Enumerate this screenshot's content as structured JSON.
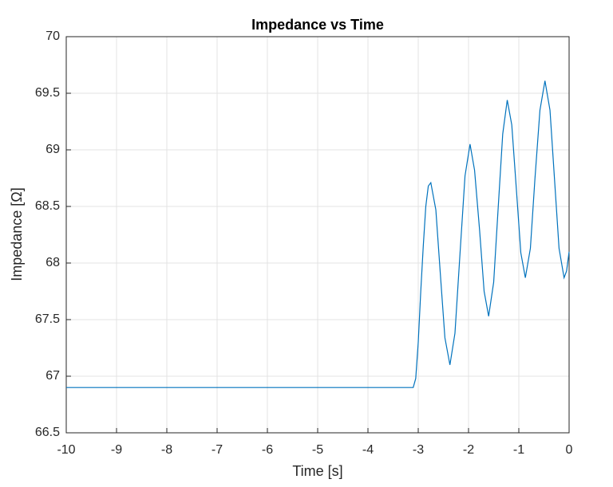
{
  "chart_data": {
    "type": "line",
    "title": "Impedance vs Time",
    "x_label": "Time [s]",
    "y_label": "Impedance [Ω]",
    "x": [
      -10,
      -3.1,
      -3.05,
      -3.0,
      -2.95,
      -2.9,
      -2.85,
      -2.8,
      -2.75,
      -2.65,
      -2.56,
      -2.47,
      -2.37,
      -2.27,
      -2.17,
      -2.07,
      -1.97,
      -1.88,
      -1.78,
      -1.69,
      -1.6,
      -1.5,
      -1.41,
      -1.32,
      -1.23,
      -1.14,
      -1.05,
      -0.96,
      -0.87,
      -0.77,
      -0.68,
      -0.58,
      -0.48,
      -0.38,
      -0.29,
      -0.2,
      -0.1,
      -0.05,
      0
    ],
    "series": [
      {
        "name": "Impedance",
        "color": "#0072bd",
        "values": [
          66.9,
          66.9,
          66.98,
          67.3,
          67.75,
          68.15,
          68.5,
          68.68,
          68.71,
          68.47,
          67.9,
          67.34,
          67.1,
          67.38,
          68.08,
          68.77,
          69.05,
          68.82,
          68.29,
          67.75,
          67.53,
          67.83,
          68.49,
          69.14,
          69.44,
          69.22,
          68.66,
          68.09,
          67.87,
          68.13,
          68.74,
          69.35,
          69.61,
          69.35,
          68.74,
          68.13,
          67.87,
          67.93,
          68.1
        ]
      }
    ],
    "xlim": [
      -10,
      0
    ],
    "xticks": [
      -10,
      -9,
      -8,
      -7,
      -6,
      -5,
      -4,
      -3,
      -2,
      -1,
      0
    ],
    "ylim": [
      66.5,
      70
    ],
    "yticks": [
      66.5,
      67,
      67.5,
      68,
      68.5,
      69,
      69.5,
      70
    ],
    "grid": true
  }
}
